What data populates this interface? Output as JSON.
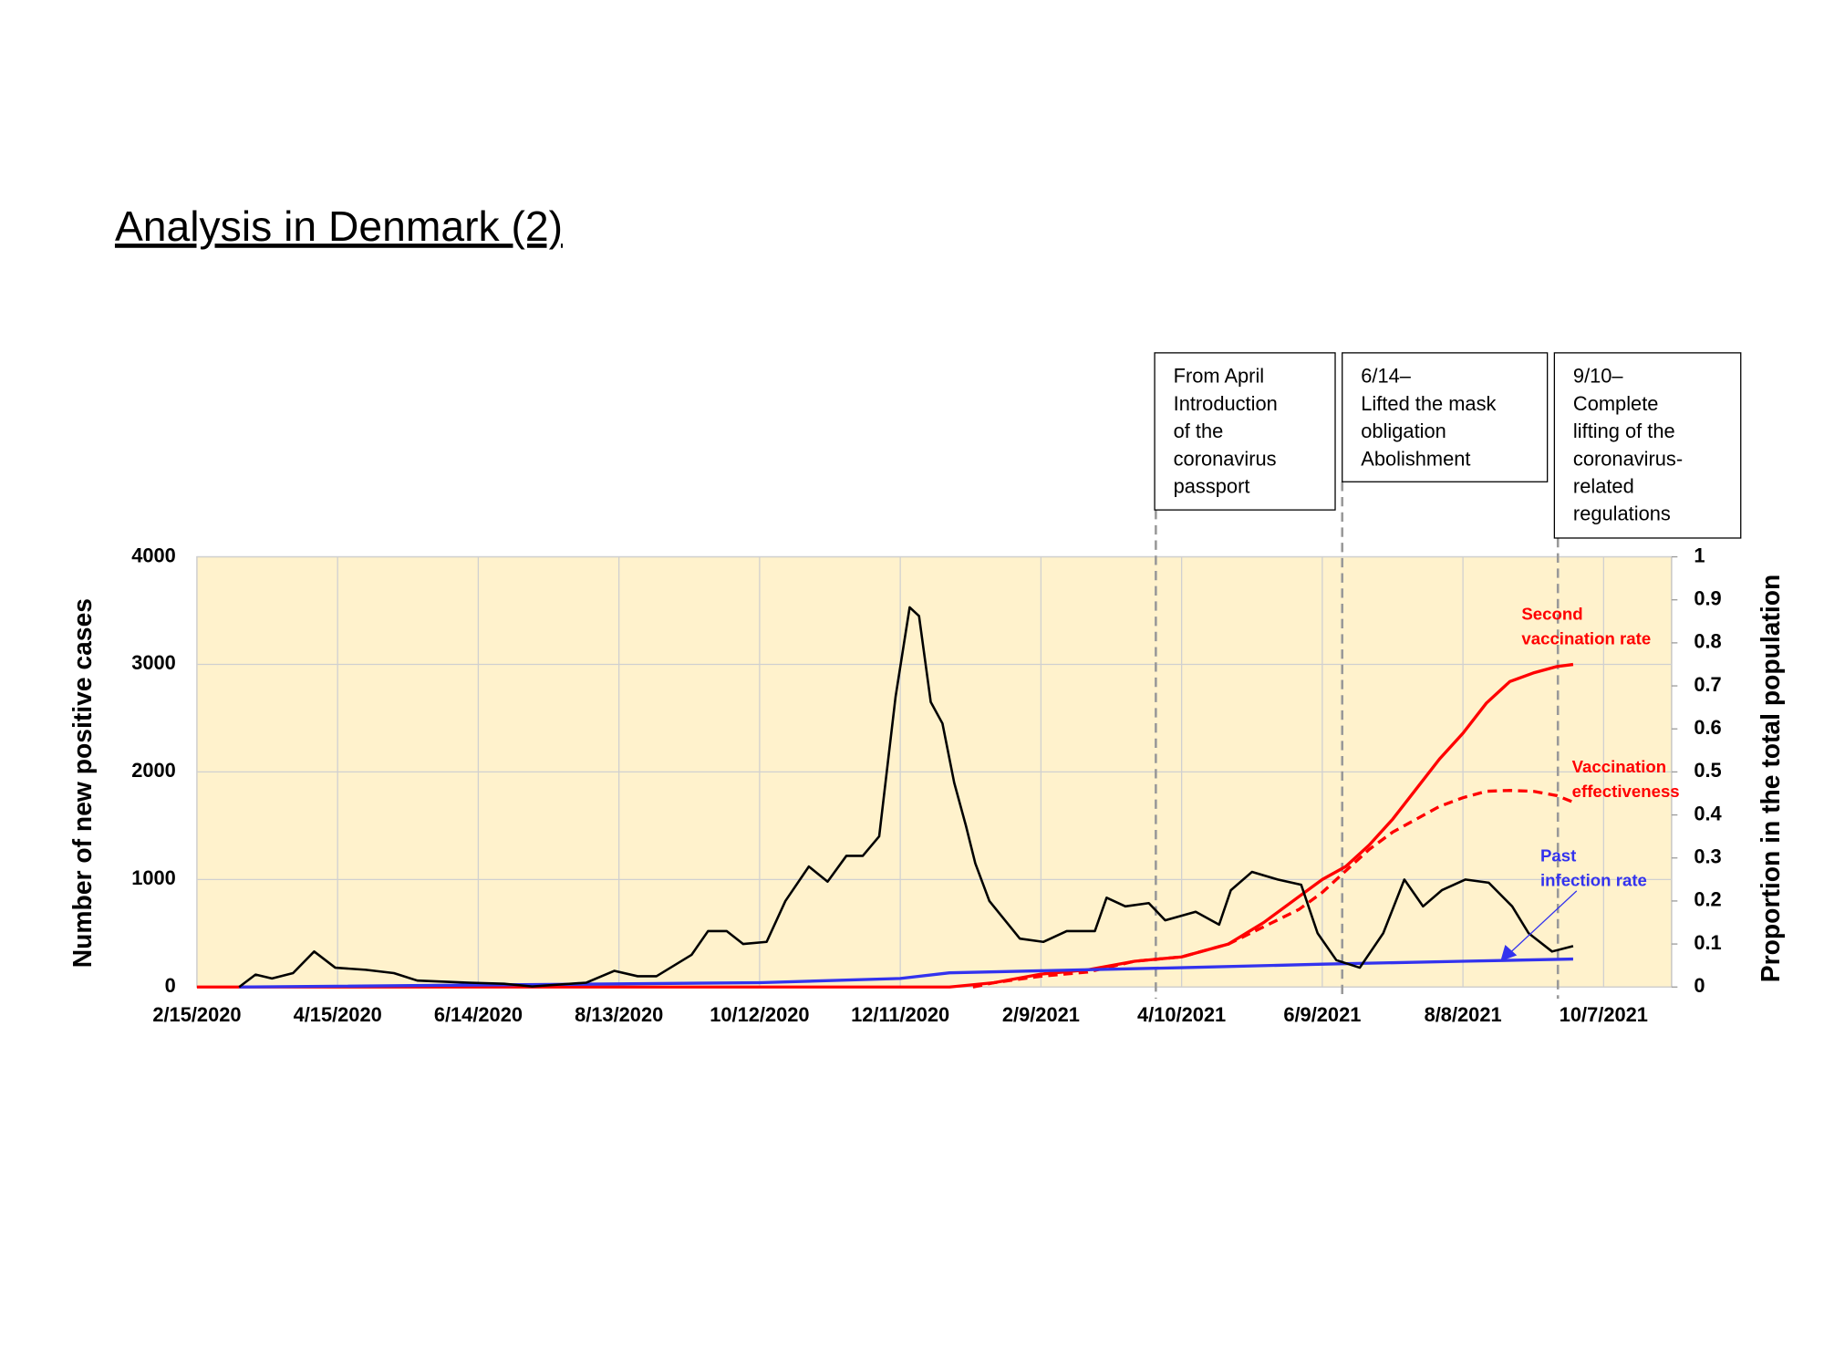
{
  "chart_data": {
    "type": "line",
    "title": "Analysis in Denmark (2)",
    "y_label": "Number of new positive cases",
    "y2_label": "Proportion in the total population",
    "xlim": [
      "2/15/2020",
      "11/5/2021"
    ],
    "xticks": [
      "2/15/2020",
      "4/15/2020",
      "6/14/2020",
      "8/13/2020",
      "10/12/2020",
      "12/11/2020",
      "2/9/2021",
      "4/10/2021",
      "6/9/2021",
      "8/8/2021",
      "10/7/2021"
    ],
    "ylim": [
      0,
      4000
    ],
    "yticks": [
      0,
      1000,
      2000,
      3000,
      4000
    ],
    "y2lim": [
      0,
      1
    ],
    "y2ticks": [
      0,
      0.1,
      0.2,
      0.3,
      0.4,
      0.5,
      0.6,
      0.7,
      0.8,
      0.9,
      1
    ],
    "grid": true,
    "background": "#fff2cc",
    "series": [
      {
        "color": "#000000",
        "x": [
          "3/4/2020",
          "3/11/2020",
          "3/18/2020",
          "3/27/2020",
          "4/5/2020",
          "4/14/2020",
          "4/27/2020",
          "5/9/2020",
          "5/19/2020",
          "6/10/2020",
          "6/25/2020",
          "7/7/2020",
          "7/30/2020",
          "8/11/2020",
          "8/21/2020",
          "8/29/2020",
          "9/13/2020",
          "9/20/2020",
          "9/28/2020",
          "10/5/2020",
          "10/15/2020",
          "10/23/2020",
          "11/2/2020",
          "11/10/2020",
          "11/18/2020",
          "11/25/2020",
          "12/2/2020",
          "12/9/2020",
          "12/15/2020",
          "12/19/2020",
          "12/24/2020",
          "12/29/2020",
          "1/3/2021",
          "1/8/2021",
          "1/12/2021",
          "1/18/2021",
          "1/31/2021",
          "2/10/2021",
          "2/20/2021",
          "3/4/2021",
          "3/9/2021",
          "3/17/2021",
          "3/27/2021",
          "4/3/2021",
          "4/16/2021",
          "4/26/2021",
          "5/1/2021",
          "5/10/2021",
          "5/21/2021",
          "5/31/2021",
          "6/7/2021",
          "6/15/2021",
          "6/25/2021",
          "7/5/2021",
          "7/14/2021",
          "7/22/2021",
          "7/30/2021",
          "8/9/2021",
          "8/19/2021",
          "8/29/2021",
          "9/5/2021",
          "9/15/2021",
          "9/24/2021"
        ],
        "values": [
          0,
          115,
          80,
          130,
          330,
          180,
          160,
          130,
          60,
          40,
          30,
          5,
          40,
          150,
          100,
          100,
          300,
          520,
          520,
          400,
          420,
          800,
          1120,
          980,
          1220,
          1220,
          1400,
          2700,
          3530,
          3450,
          2650,
          2450,
          1900,
          1500,
          1150,
          800,
          450,
          420,
          520,
          520,
          830,
          750,
          780,
          620,
          700,
          580,
          900,
          1070,
          1000,
          950,
          500,
          250,
          180,
          500,
          1000,
          750,
          900,
          1000,
          970,
          750,
          500,
          330,
          380
        ]
      },
      {
        "label_lines": [
          "Second",
          "vaccination rate"
        ],
        "color": "#ff0000",
        "axis": "y2",
        "x": [
          "2/15/2020",
          "1/1/2021",
          "1/20/2021",
          "2/9/2021",
          "3/1/2021",
          "3/21/2021",
          "4/10/2021",
          "4/30/2021",
          "5/15/2021",
          "5/30/2021",
          "6/9/2021",
          "6/19/2021",
          "6/29/2021",
          "7/9/2021",
          "7/19/2021",
          "7/29/2021",
          "8/8/2021",
          "8/18/2021",
          "8/28/2021",
          "9/7/2021",
          "9/17/2021",
          "9/24/2021"
        ],
        "values": [
          0,
          0,
          0.01,
          0.03,
          0.04,
          0.06,
          0.07,
          0.1,
          0.15,
          0.21,
          0.25,
          0.28,
          0.33,
          0.39,
          0.46,
          0.53,
          0.59,
          0.66,
          0.71,
          0.73,
          0.745,
          0.75
        ]
      },
      {
        "label_lines": [
          "Vaccination",
          "effectiveness"
        ],
        "color": "#ff0000",
        "axis": "y2",
        "dash": true,
        "x": [
          "1/11/2021",
          "1/20/2021",
          "2/9/2021",
          "3/1/2021",
          "3/21/2021",
          "4/10/2021",
          "4/30/2021",
          "5/15/2021",
          "5/30/2021",
          "6/9/2021",
          "6/19/2021",
          "6/29/2021",
          "7/9/2021",
          "7/19/2021",
          "7/29/2021",
          "8/8/2021",
          "8/18/2021",
          "8/28/2021",
          "9/7/2021",
          "9/17/2021",
          "9/24/2021"
        ],
        "values": [
          0,
          0.01,
          0.025,
          0.035,
          0.06,
          0.07,
          0.1,
          0.14,
          0.18,
          0.22,
          0.27,
          0.32,
          0.36,
          0.39,
          0.42,
          0.44,
          0.455,
          0.457,
          0.455,
          0.445,
          0.43
        ]
      },
      {
        "label_lines": [
          "Past",
          "infection rate"
        ],
        "color": "#3333ee",
        "axis": "y2",
        "x": [
          "3/4/2020",
          "10/12/2020",
          "12/11/2020",
          "1/1/2021",
          "2/9/2021",
          "4/10/2021",
          "6/9/2021",
          "8/8/2021",
          "9/24/2021"
        ],
        "values": [
          0,
          0.01,
          0.02,
          0.033,
          0.038,
          0.045,
          0.053,
          0.06,
          0.065
        ]
      }
    ],
    "annotations": [
      {
        "lines": [
          "From April",
          "Introduction",
          "of the",
          "coronavirus",
          "passport"
        ]
      },
      {
        "lines": [
          "6/14–",
          "Lifted the mask",
          "obligation",
          "Abolishment"
        ]
      },
      {
        "lines": [
          "9/10–",
          "Complete",
          "lifting of the",
          "coronavirus-",
          "related",
          "regulations"
        ]
      }
    ]
  }
}
